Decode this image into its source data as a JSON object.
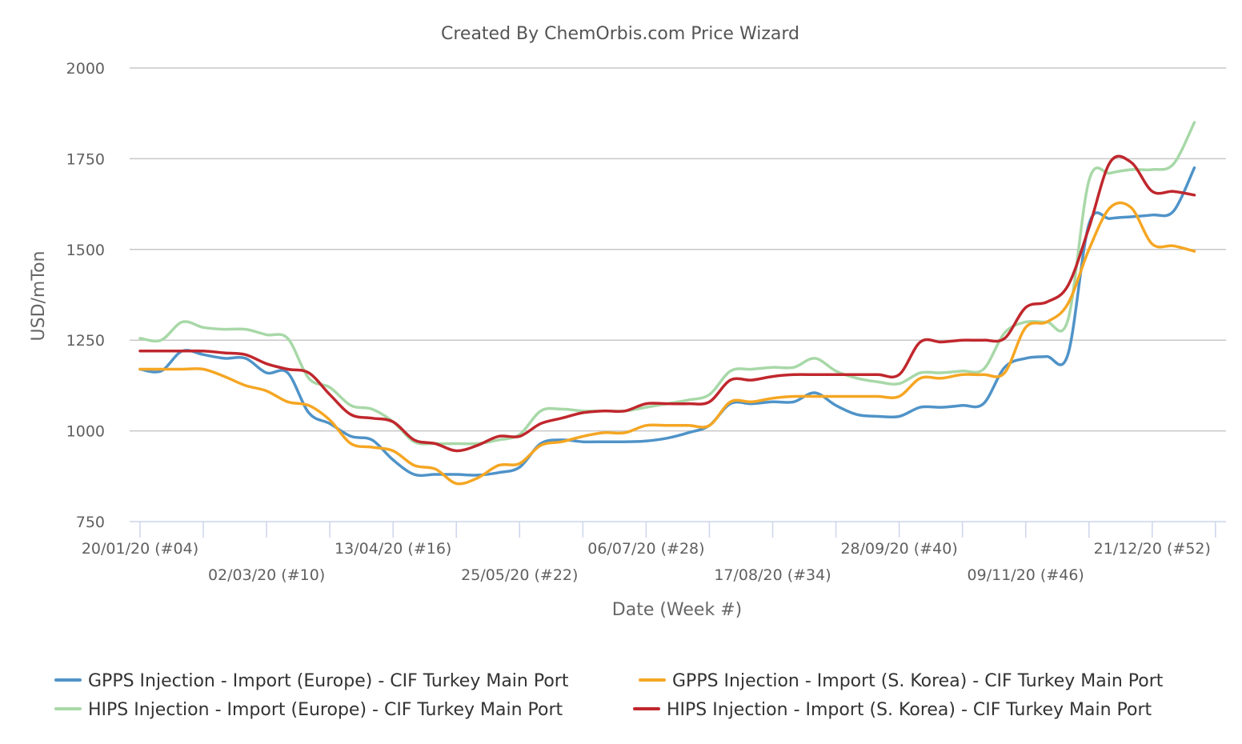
{
  "chart_data": {
    "type": "line",
    "title": "Created By ChemOrbis.com Price Wizard",
    "xlabel": "Date (Week #)",
    "ylabel": "USD/mTon",
    "ylim": [
      750,
      2000
    ],
    "yticks": [
      750,
      1000,
      1250,
      1500,
      1750,
      2000
    ],
    "grid": true,
    "legend_position": "bottom",
    "x_start": "20/01/20",
    "x_step_weeks": 1,
    "x_ticks_top": [
      "20/01/20 (#04)",
      "13/04/20 (#16)",
      "06/07/20 (#28)",
      "28/09/20 (#40)",
      "21/12/20 (#52)"
    ],
    "x_ticks_bottom": [
      "02/03/20 (#10)",
      "25/05/20 (#22)",
      "17/08/20 (#34)",
      "09/11/20 (#46)"
    ],
    "series": [
      {
        "name": "GPPS Injection - Import (Europe) - CIF Turkey Main Port",
        "color": "#4f93c8",
        "values": [
          1170,
          1165,
          1220,
          1210,
          1200,
          1200,
          1160,
          1160,
          1050,
          1020,
          985,
          975,
          920,
          880,
          880,
          880,
          878,
          885,
          900,
          965,
          975,
          970,
          970,
          970,
          972,
          980,
          995,
          1015,
          1075,
          1075,
          1080,
          1080,
          1105,
          1070,
          1045,
          1040,
          1040,
          1065,
          1065,
          1070,
          1075,
          1175,
          1200,
          1205,
          1210,
          1570,
          1585,
          1590,
          1595,
          1605,
          1725
        ]
      },
      {
        "name": "GPPS Injection - Import (S. Korea) - CIF Turkey Main Port",
        "color": "#f5a623",
        "values": [
          1170,
          1170,
          1170,
          1170,
          1150,
          1125,
          1110,
          1080,
          1070,
          1030,
          965,
          955,
          945,
          905,
          895,
          855,
          870,
          905,
          910,
          960,
          970,
          985,
          995,
          995,
          1015,
          1015,
          1015,
          1015,
          1080,
          1080,
          1090,
          1095,
          1095,
          1095,
          1095,
          1095,
          1095,
          1145,
          1145,
          1155,
          1155,
          1160,
          1285,
          1300,
          1350,
          1500,
          1615,
          1615,
          1515,
          1510,
          1495
        ]
      },
      {
        "name": "HIPS Injection - Import (Europe) - CIF Turkey Main Port",
        "color": "#a8d8a8",
        "values": [
          1255,
          1250,
          1300,
          1285,
          1280,
          1280,
          1265,
          1255,
          1145,
          1120,
          1070,
          1060,
          1025,
          970,
          965,
          965,
          965,
          975,
          990,
          1055,
          1060,
          1055,
          1055,
          1055,
          1065,
          1075,
          1085,
          1100,
          1165,
          1170,
          1175,
          1175,
          1200,
          1165,
          1145,
          1135,
          1130,
          1160,
          1160,
          1165,
          1170,
          1270,
          1300,
          1300,
          1305,
          1690,
          1710,
          1720,
          1720,
          1735,
          1850
        ]
      },
      {
        "name": "HIPS Injection - Import (S. Korea) - CIF Turkey Main Port",
        "color": "#c0272d",
        "values": [
          1220,
          1220,
          1220,
          1220,
          1215,
          1210,
          1185,
          1170,
          1160,
          1100,
          1045,
          1035,
          1025,
          975,
          965,
          945,
          960,
          985,
          985,
          1020,
          1035,
          1050,
          1055,
          1055,
          1075,
          1075,
          1075,
          1080,
          1140,
          1140,
          1150,
          1155,
          1155,
          1155,
          1155,
          1155,
          1155,
          1245,
          1245,
          1250,
          1250,
          1255,
          1340,
          1355,
          1400,
          1560,
          1740,
          1740,
          1660,
          1660,
          1650
        ]
      }
    ]
  }
}
